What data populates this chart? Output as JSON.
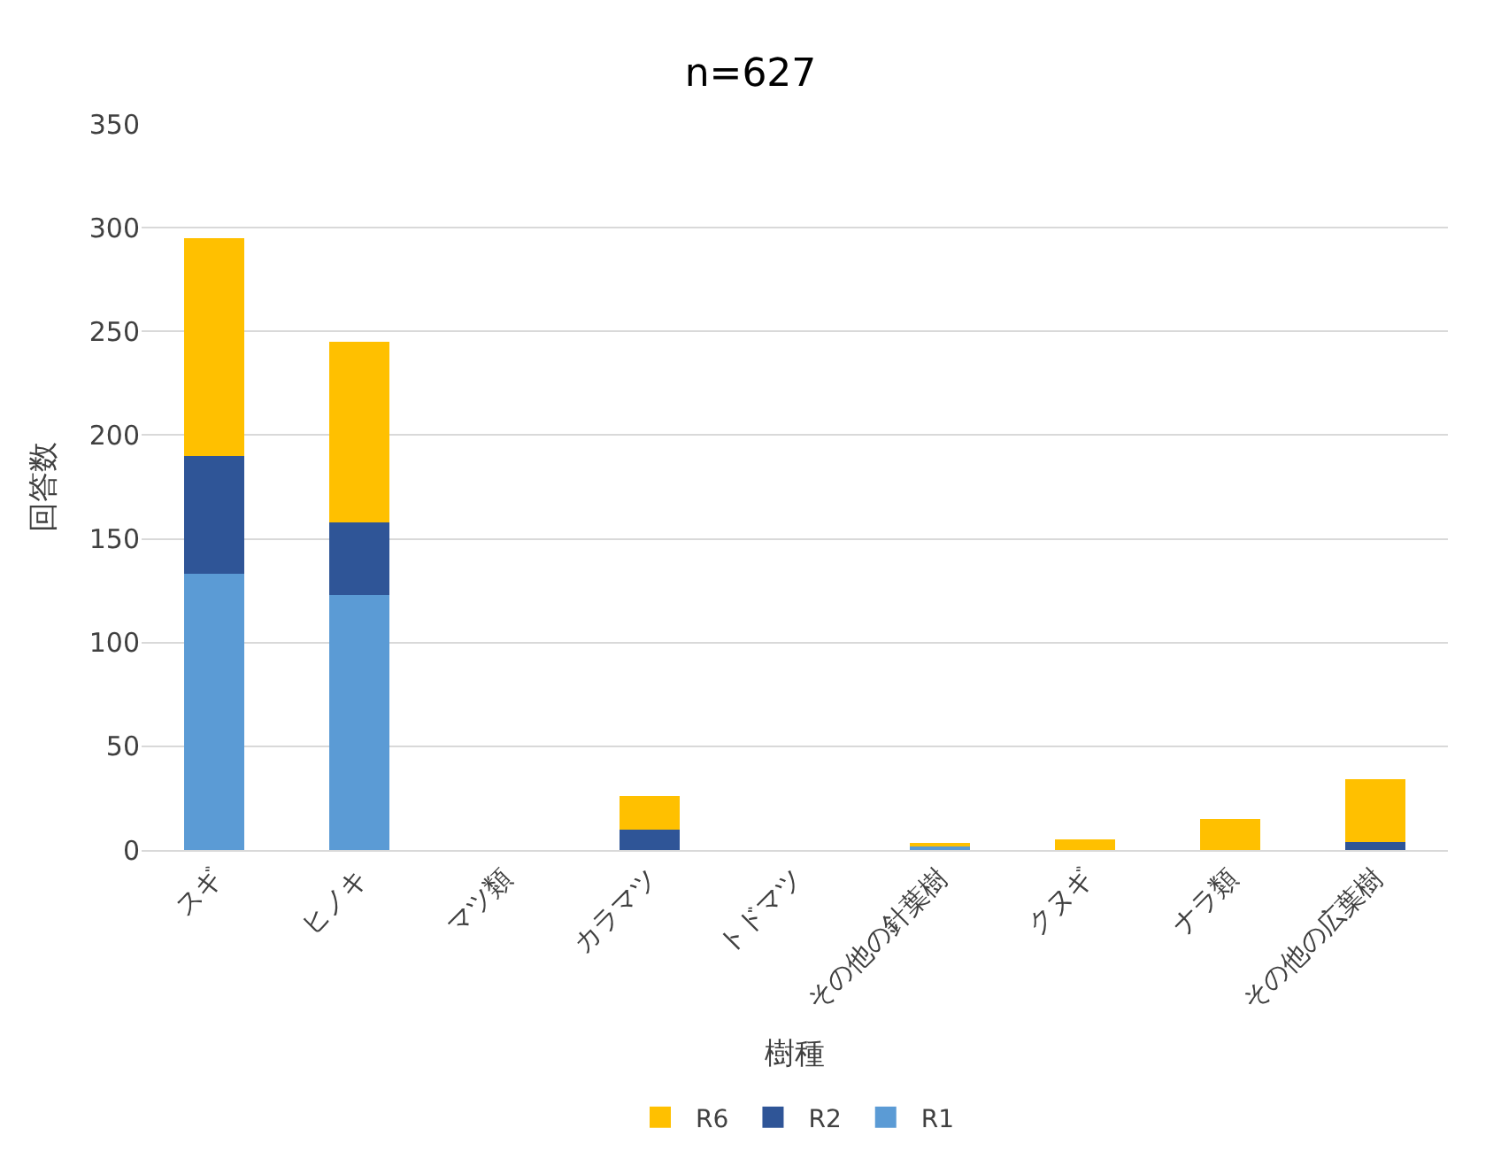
{
  "chart_data": {
    "type": "bar",
    "stacked": true,
    "title": "n=627",
    "xlabel": "樹種",
    "ylabel": "回答数",
    "categories": [
      "スギ",
      "ヒノキ",
      "マツ類",
      "カラマツ",
      "トドマツ",
      "その他の針葉樹",
      "クヌギ",
      "ナラ類",
      "その他の広葉樹"
    ],
    "series": [
      {
        "name": "R1",
        "color": "#5b9bd5",
        "values": [
          133,
          123,
          0,
          0,
          0,
          2,
          0,
          0,
          0
        ]
      },
      {
        "name": "R2",
        "color": "#2f5597",
        "values": [
          57,
          35,
          0,
          10,
          0,
          0,
          0,
          0,
          4
        ]
      },
      {
        "name": "R6",
        "color": "#ffc000",
        "values": [
          105,
          87,
          0,
          16,
          0,
          1,
          5,
          15,
          30
        ]
      }
    ],
    "ylim": [
      0,
      350
    ],
    "yticks": [
      0,
      50,
      100,
      150,
      200,
      250,
      300,
      350
    ],
    "grid": "y",
    "legend": "bottom"
  }
}
